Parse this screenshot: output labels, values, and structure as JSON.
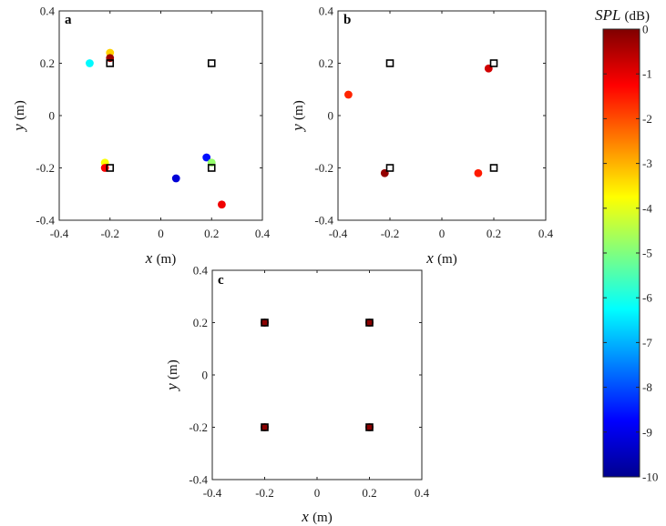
{
  "chart_data": [
    {
      "panel": "a",
      "type": "scatter",
      "xlabel_var": "x",
      "xlabel_unit": "(m)",
      "ylabel_var": "y",
      "ylabel_unit": "(m)",
      "xlim": [
        -0.4,
        0.4
      ],
      "ylim": [
        -0.4,
        0.4
      ],
      "xticks": [
        "-0.4",
        "-0.2",
        "0",
        "0.2",
        "0.4"
      ],
      "yticks": [
        "-0.4",
        "-0.2",
        "0",
        "0.2",
        "0.4"
      ],
      "sources": [
        {
          "x": -0.2,
          "y": 0.2
        },
        {
          "x": 0.2,
          "y": 0.2
        },
        {
          "x": -0.2,
          "y": -0.2
        },
        {
          "x": 0.2,
          "y": -0.2
        }
      ],
      "estimates": [
        {
          "x": -0.28,
          "y": 0.2,
          "spl": -6.3
        },
        {
          "x": -0.2,
          "y": 0.24,
          "spl": -3.3
        },
        {
          "x": -0.2,
          "y": 0.22,
          "spl": -0.3
        },
        {
          "x": -0.22,
          "y": -0.18,
          "spl": -3.8
        },
        {
          "x": -0.22,
          "y": -0.2,
          "spl": -1.2
        },
        {
          "x": 0.18,
          "y": -0.16,
          "spl": -8.6
        },
        {
          "x": 0.2,
          "y": -0.18,
          "spl": -4.8
        },
        {
          "x": 0.06,
          "y": -0.24,
          "spl": -9.2
        },
        {
          "x": 0.24,
          "y": -0.34,
          "spl": -1.1
        }
      ]
    },
    {
      "panel": "b",
      "type": "scatter",
      "xlabel_var": "x",
      "xlabel_unit": "(m)",
      "ylabel_var": "y",
      "ylabel_unit": "(m)",
      "xlim": [
        -0.4,
        0.4
      ],
      "ylim": [
        -0.4,
        0.4
      ],
      "xticks": [
        "-0.4",
        "-0.2",
        "0",
        "0.2",
        "0.4"
      ],
      "yticks": [
        "-0.4",
        "-0.2",
        "0",
        "0.2",
        "0.4"
      ],
      "sources": [
        {
          "x": -0.2,
          "y": 0.2
        },
        {
          "x": 0.2,
          "y": 0.2
        },
        {
          "x": -0.2,
          "y": -0.2
        },
        {
          "x": 0.2,
          "y": -0.2
        }
      ],
      "estimates": [
        {
          "x": -0.36,
          "y": 0.08,
          "spl": -1.6
        },
        {
          "x": 0.18,
          "y": 0.18,
          "spl": -0.8
        },
        {
          "x": -0.22,
          "y": -0.22,
          "spl": -0.2
        },
        {
          "x": 0.14,
          "y": -0.22,
          "spl": -1.5
        }
      ]
    },
    {
      "panel": "c",
      "type": "scatter",
      "xlabel_var": "x",
      "xlabel_unit": "(m)",
      "ylabel_var": "y",
      "ylabel_unit": "(m)",
      "xlim": [
        -0.4,
        0.4
      ],
      "ylim": [
        -0.4,
        0.4
      ],
      "xticks": [
        "-0.4",
        "-0.2",
        "0",
        "0.2",
        "0.4"
      ],
      "yticks": [
        "-0.4",
        "-0.2",
        "0",
        "0.2",
        "0.4"
      ],
      "sources": [
        {
          "x": -0.2,
          "y": 0.2
        },
        {
          "x": 0.2,
          "y": 0.2
        },
        {
          "x": -0.2,
          "y": -0.2
        },
        {
          "x": 0.2,
          "y": -0.2
        }
      ],
      "estimates": [
        {
          "x": -0.2,
          "y": 0.2,
          "spl": -0.1
        },
        {
          "x": 0.2,
          "y": 0.2,
          "spl": -0.1
        },
        {
          "x": -0.2,
          "y": -0.2,
          "spl": -0.1
        },
        {
          "x": 0.2,
          "y": -0.2,
          "spl": -0.1
        }
      ]
    }
  ],
  "colorbar": {
    "title_var": "SPL",
    "title_unit": "(dB)",
    "min": -10,
    "max": 0,
    "ticks": [
      "0",
      "-1",
      "-2",
      "-3",
      "-4",
      "-5",
      "-6",
      "-7",
      "-8",
      "-9",
      "-10"
    ],
    "colormap": "jet"
  }
}
